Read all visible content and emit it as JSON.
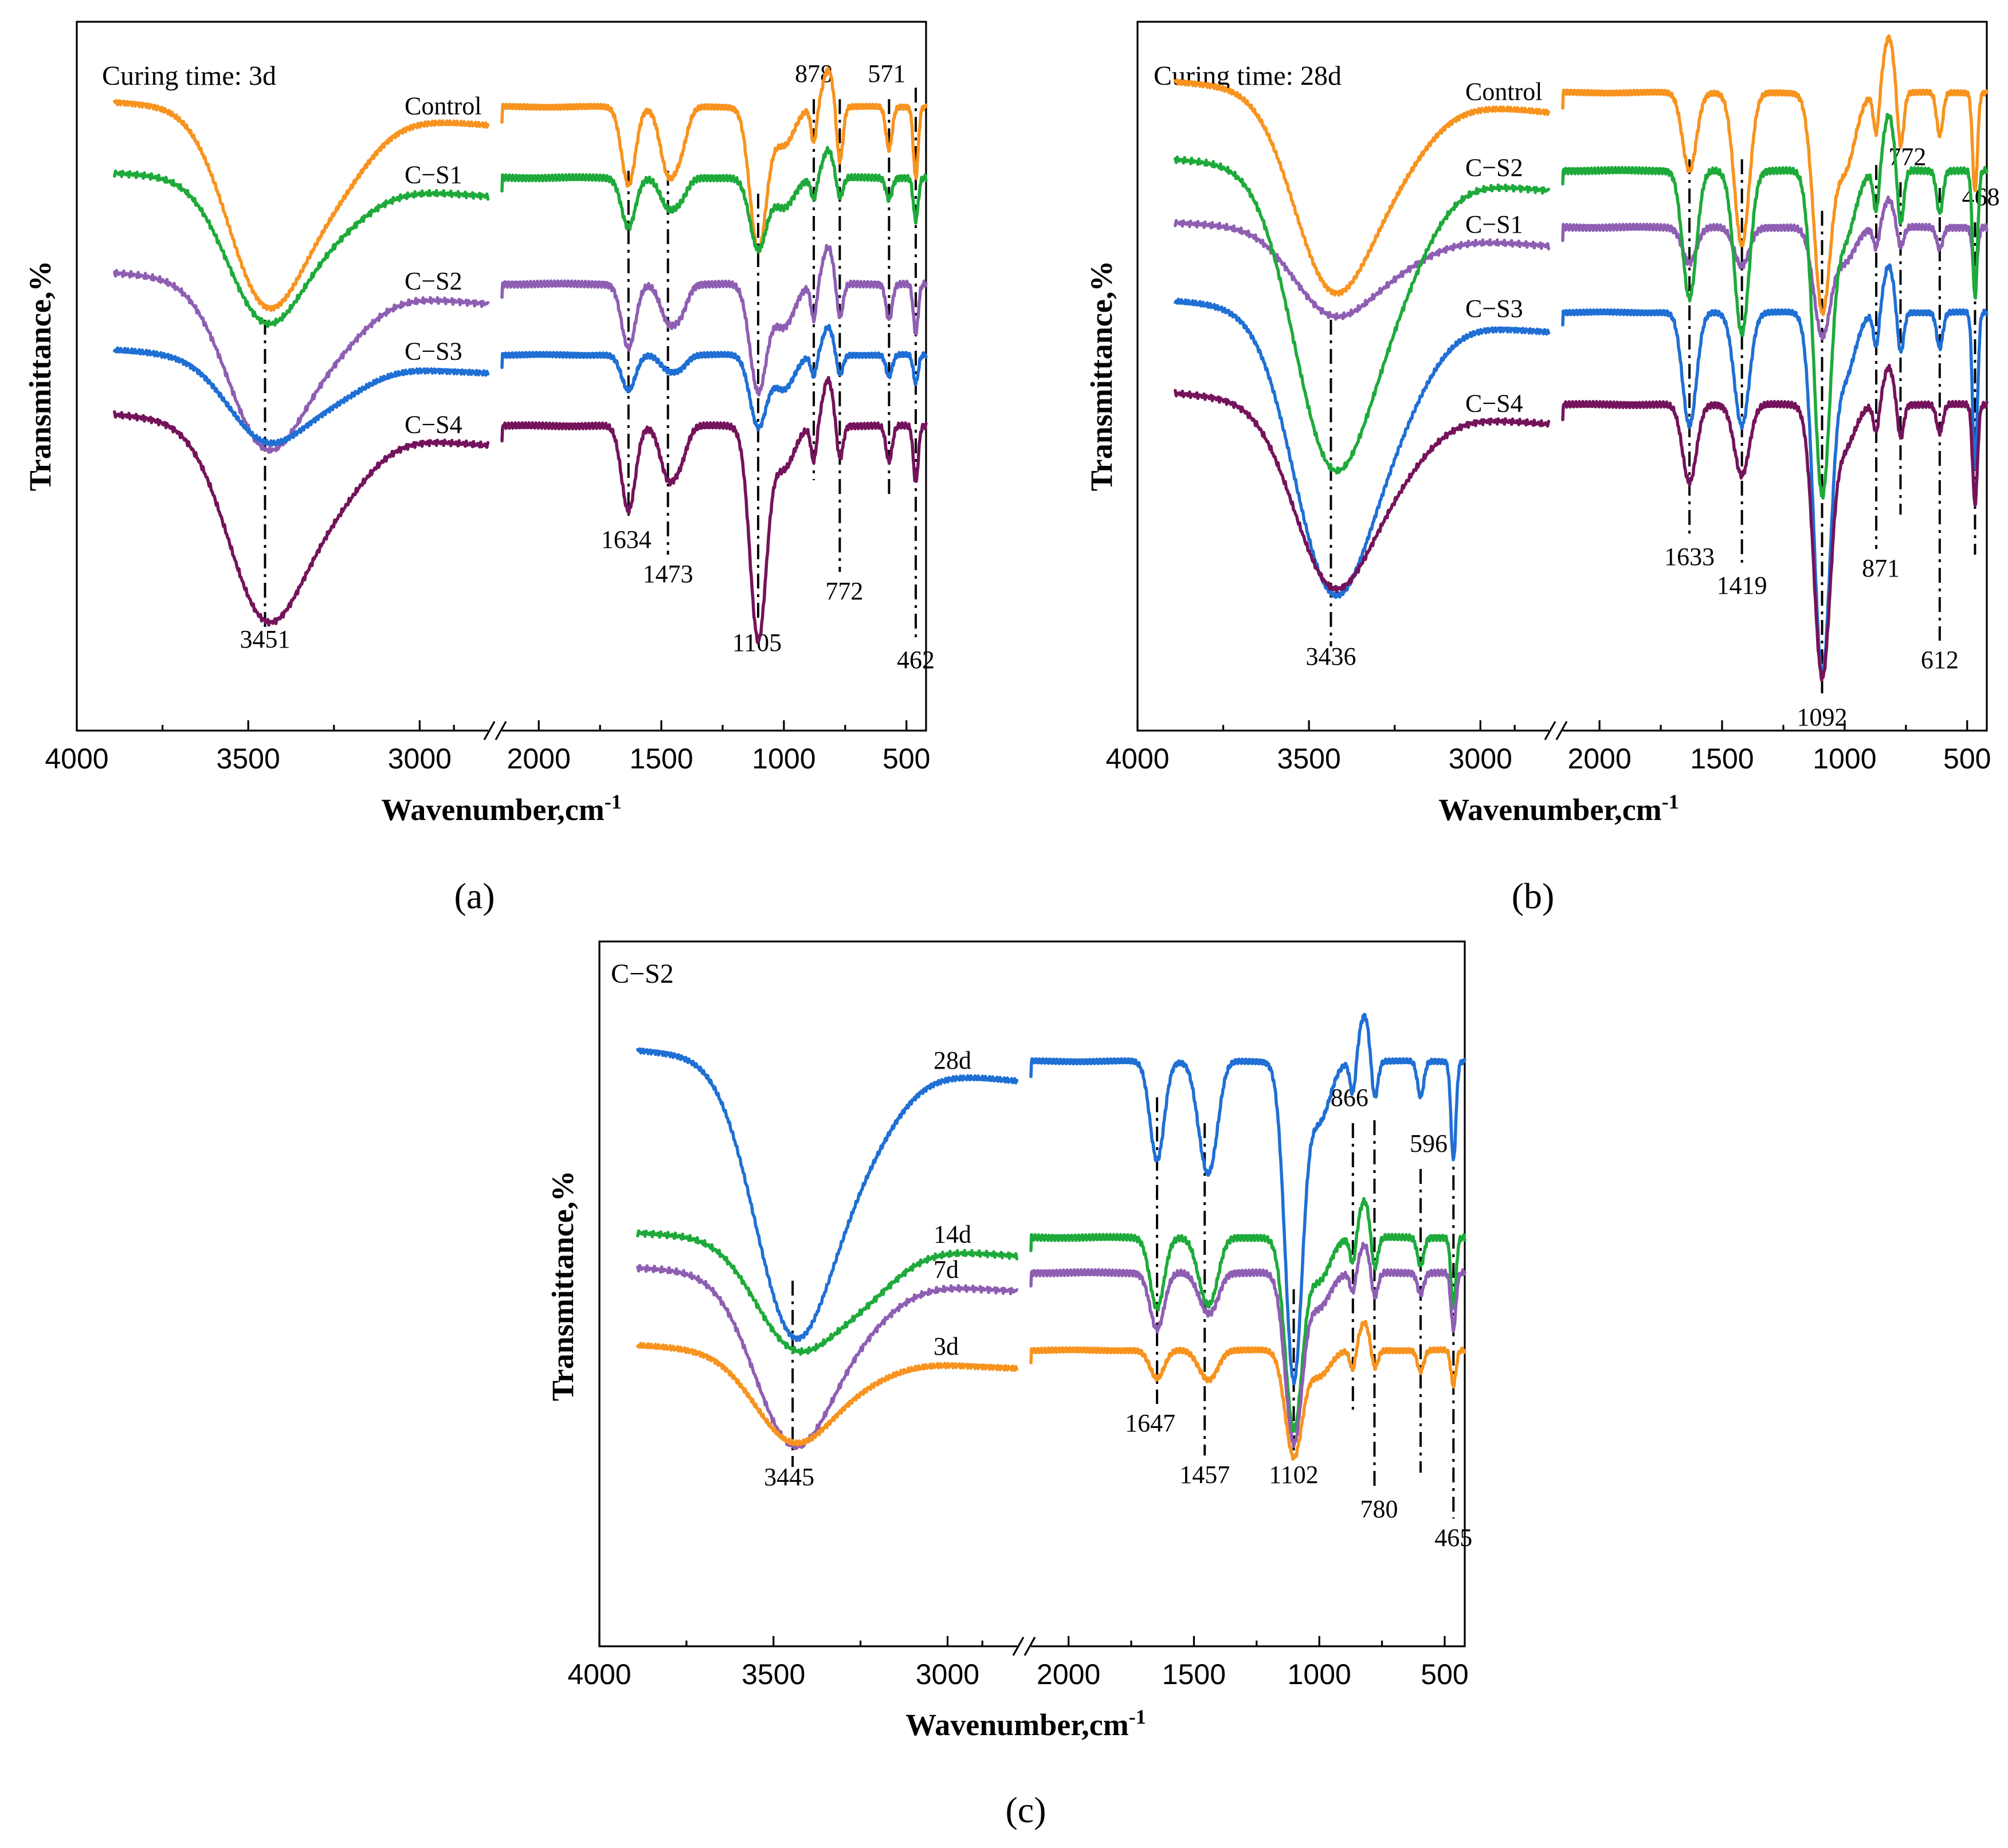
{
  "chart_data": [
    {
      "type": "line",
      "panel": "a",
      "caption": "(a)",
      "title": "Curing time: 3d",
      "xlabel": "Wavenumber,cm",
      "xlabel_sup": "-1",
      "ylabel": "Transmittance,%",
      "x_segments": [
        [
          4000,
          2800
        ],
        [
          2150,
          420
        ]
      ],
      "x_ticks": [
        "4000",
        "3500",
        "3000",
        "2000",
        "1500",
        "1000",
        "500"
      ],
      "y_range": [
        0,
        100
      ],
      "peaks": [
        "3451",
        "1634",
        "1473",
        "1105",
        "878",
        "772",
        "571",
        "462"
      ],
      "series": [
        {
          "name": "Control",
          "color": "#F7931E",
          "label_pos": "top-right",
          "offset": 86,
          "depths": [
            26,
            18,
            11,
            9,
            10,
            20,
            9,
            4,
            5,
            8,
            6,
            3,
            10
          ]
        },
        {
          "name": "C−S1",
          "color": "#1EAA3A",
          "label_pos": "top-right",
          "offset": 76,
          "depths": [
            19,
            10,
            7,
            4,
            5,
            10,
            7,
            3,
            3,
            3,
            3,
            3,
            6
          ]
        },
        {
          "name": "C−S2",
          "color": "#8E5EB3",
          "label_pos": "top-right",
          "offset": 61,
          "depths": [
            22,
            13,
            9,
            5,
            7,
            15,
            10,
            4,
            5,
            5,
            5,
            4,
            7
          ]
        },
        {
          "name": "C−S3",
          "color": "#1F6FD4",
          "label_pos": "middle-right",
          "offset": 51,
          "depths": [
            11,
            8,
            5,
            2,
            3,
            10,
            8,
            3,
            3,
            3,
            3,
            3,
            4
          ]
        },
        {
          "name": "C−S4",
          "color": "#74135B",
          "label_pos": "middle-right",
          "offset": 41,
          "depths": [
            26,
            16,
            12,
            7,
            8,
            30,
            10,
            5,
            5,
            5,
            5,
            4,
            8
          ]
        }
      ]
    },
    {
      "type": "line",
      "panel": "b",
      "caption": "(b)",
      "title": "Curing time: 28d",
      "xlabel": "Wavenumber,cm",
      "xlabel_sup": "-1",
      "ylabel": "Transmittance,%",
      "x_segments": [
        [
          4000,
          2800
        ],
        [
          2150,
          420
        ]
      ],
      "x_ticks": [
        "4000",
        "3500",
        "3000",
        "2000",
        "1500",
        "1000",
        "500"
      ],
      "y_range": [
        0,
        100
      ],
      "peaks": [
        "3436",
        "1633",
        "1419",
        "1092",
        "871",
        "772",
        "612",
        "468"
      ],
      "series": [
        {
          "name": "Control",
          "color": "#F7931E",
          "label_pos": "top-right",
          "offset": 88,
          "depths": [
            26,
            16,
            11,
            14,
            15,
            30,
            18,
            6,
            6,
            8,
            6,
            4,
            14
          ]
        },
        {
          "name": "C−S1",
          "color": "#8E5EB3",
          "label_pos": "middle-right",
          "offset": 69,
          "depths": [
            11,
            7,
            5,
            3,
            5,
            15,
            8,
            3,
            3,
            3,
            3,
            3,
            7
          ]
        },
        {
          "name": "C−S2",
          "color": "#1EAA3A",
          "label_pos": "top-right",
          "offset": 77,
          "depths": [
            39,
            25,
            18,
            14,
            18,
            45,
            16,
            6,
            6,
            8,
            6,
            4,
            18
          ]
        },
        {
          "name": "C−S3",
          "color": "#1F6FD4",
          "label_pos": "middle-right",
          "offset": 57,
          "depths": [
            37,
            22,
            16,
            10,
            12,
            50,
            15,
            5,
            5,
            6,
            5,
            4,
            22
          ]
        },
        {
          "name": "C−S4",
          "color": "#74135B",
          "label_pos": "middle-right",
          "offset": 44,
          "depths": [
            24,
            14,
            11,
            6,
            8,
            38,
            10,
            4,
            4,
            5,
            4,
            4,
            14
          ]
        }
      ]
    },
    {
      "type": "line",
      "panel": "c",
      "caption": "(c)",
      "title": "C−S2",
      "xlabel": "Wavenumber,cm",
      "xlabel_sup": "-1",
      "ylabel": "Transmittance,%",
      "x_segments": [
        [
          4000,
          2800
        ],
        [
          2150,
          420
        ]
      ],
      "x_ticks": [
        "4000",
        "3500",
        "3000",
        "2000",
        "1500",
        "1000",
        "500"
      ],
      "y_range": [
        0,
        100
      ],
      "peaks": [
        "3445",
        "1647",
        "1457",
        "1102",
        "866",
        "780",
        "596",
        "465"
      ],
      "series": [
        {
          "name": "28d",
          "color": "#1F6FD4",
          "label_pos": "top-right",
          "offset": 81,
          "depths": [
            37,
            20,
            14,
            12,
            14,
            45,
            14,
            5,
            5,
            6,
            5,
            4,
            14
          ]
        },
        {
          "name": "14d",
          "color": "#1EAA3A",
          "label_pos": "middle-right",
          "offset": 56,
          "depths": [
            14,
            13,
            10,
            7,
            9,
            27,
            10,
            4,
            4,
            5,
            4,
            3,
            10
          ]
        },
        {
          "name": "7d",
          "color": "#8E5EB3",
          "label_pos": "middle-right",
          "offset": 51,
          "depths": [
            23,
            10,
            8,
            4,
            6,
            24,
            8,
            3,
            3,
            4,
            3,
            3,
            8
          ]
        },
        {
          "name": "3d",
          "color": "#F7931E",
          "label_pos": "middle-right",
          "offset": 40,
          "depths": [
            12,
            5,
            4,
            3,
            4,
            15,
            6,
            3,
            3,
            3,
            3,
            3,
            5
          ]
        }
      ]
    }
  ]
}
